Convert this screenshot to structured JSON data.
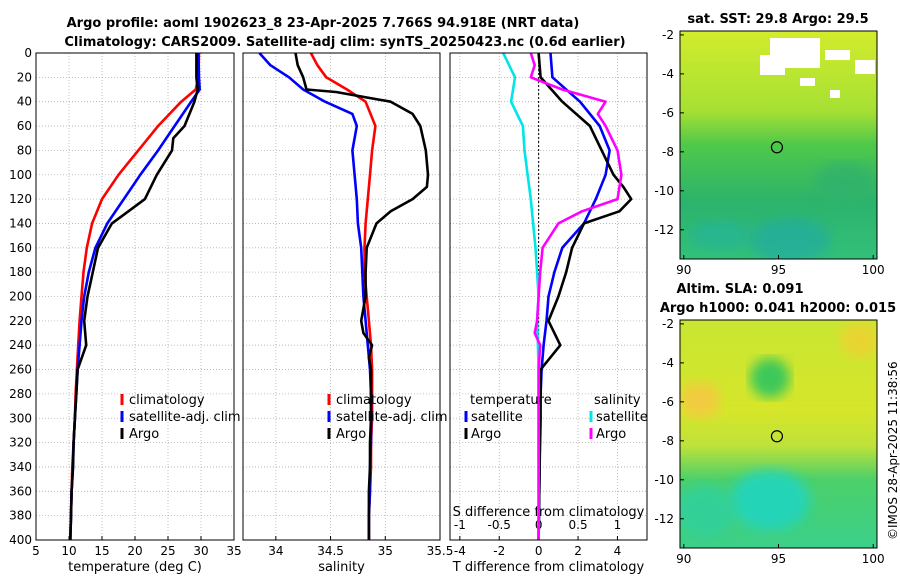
{
  "title": {
    "line1": "Argo profile: aoml 1902623_8 23-Apr-2025 7.766S 94.918E (NRT data)",
    "line2": "Climatology: CARS2009. Satellite-adj clim: synTS_20250423.nc (0.6d earlier)"
  },
  "colors": {
    "climatology": "#ff0000",
    "satellite": "#0000ff",
    "argo": "#000000",
    "s_sat": "#00e5e5",
    "s_argo": "#ff00ff"
  },
  "chart_data": [
    {
      "type": "line",
      "title": "",
      "xlabel": "temperature (deg C)",
      "xlim": [
        5,
        35
      ],
      "ylim": [
        400,
        0
      ],
      "xticks": [
        "5",
        "10",
        "15",
        "20",
        "25",
        "30",
        "35"
      ],
      "yticks": [
        "0",
        "20",
        "40",
        "60",
        "80",
        "100",
        "120",
        "140",
        "160",
        "180",
        "200",
        "220",
        "240",
        "260",
        "280",
        "300",
        "320",
        "340",
        "360",
        "380",
        "400"
      ],
      "legend": [
        "climatology",
        "satellite-adj. clim",
        "Argo"
      ],
      "series": [
        {
          "name": "climatology",
          "color": "#ff0000",
          "depth": [
            0,
            20,
            30,
            40,
            60,
            80,
            100,
            120,
            140,
            160,
            180,
            200,
            220,
            240,
            260,
            280,
            300,
            320,
            340,
            360,
            380,
            400
          ],
          "values": [
            29.7,
            29.6,
            29.2,
            27,
            23.5,
            20.5,
            17.5,
            15,
            13.5,
            12.7,
            12.2,
            11.9,
            11.6,
            11.4,
            11.2,
            11,
            10.9,
            10.7,
            10.5,
            10.4,
            10.3,
            10.2
          ]
        },
        {
          "name": "satellite-adj. clim",
          "color": "#0000ff",
          "depth": [
            0,
            20,
            30,
            40,
            60,
            80,
            100,
            120,
            140,
            160,
            180,
            200,
            220,
            240,
            260,
            280,
            300,
            320,
            340,
            360,
            380,
            400
          ],
          "values": [
            29.6,
            29.7,
            29.8,
            28.5,
            26,
            23.5,
            20.8,
            18.3,
            15.8,
            14,
            13,
            12.3,
            11.9,
            11.6,
            11.3,
            11.1,
            10.9,
            10.7,
            10.6,
            10.4,
            10.3,
            10.2
          ]
        },
        {
          "name": "Argo",
          "color": "#000000",
          "depth": [
            0,
            20,
            30,
            40,
            60,
            70,
            80,
            100,
            120,
            130,
            140,
            160,
            180,
            200,
            220,
            240,
            260,
            280,
            300,
            320,
            340,
            360,
            380,
            400
          ],
          "values": [
            29.3,
            29.3,
            29.5,
            29,
            27.5,
            25.8,
            25.6,
            23.3,
            21.5,
            19,
            16.5,
            14.4,
            13.6,
            12.8,
            12.3,
            12.6,
            11.3,
            11.1,
            10.9,
            10.7,
            10.6,
            10.4,
            10.3,
            10.2
          ]
        }
      ]
    },
    {
      "type": "line",
      "title": "",
      "xlabel": "salinity",
      "xlim": [
        33.7,
        35.5
      ],
      "ylim": [
        400,
        0
      ],
      "xticks": [
        "34",
        "34.5",
        "35",
        "35.5"
      ],
      "legend": [
        "climatology",
        "satellite-adj. clim",
        "Argo"
      ],
      "series": [
        {
          "name": "climatology",
          "color": "#ff0000",
          "depth": [
            0,
            10,
            20,
            30,
            40,
            60,
            80,
            100,
            120,
            140,
            160,
            180,
            200,
            220,
            240,
            260,
            280,
            300,
            320,
            340,
            360,
            380,
            400
          ],
          "values": [
            34.32,
            34.38,
            34.46,
            34.65,
            34.82,
            34.91,
            34.88,
            34.86,
            34.84,
            34.82,
            34.81,
            34.81,
            34.83,
            34.85,
            34.87,
            34.88,
            34.88,
            34.88,
            34.87,
            34.87,
            34.86,
            34.85,
            34.85
          ]
        },
        {
          "name": "satellite-adj. clim",
          "color": "#0000ff",
          "depth": [
            0,
            10,
            20,
            30,
            40,
            50,
            60,
            80,
            100,
            120,
            140,
            160,
            180,
            200,
            220,
            240,
            260,
            280,
            300,
            320,
            340,
            360,
            380,
            400
          ],
          "values": [
            33.85,
            33.95,
            34.12,
            34.25,
            34.45,
            34.7,
            34.74,
            34.7,
            34.72,
            34.74,
            34.75,
            34.78,
            34.79,
            34.8,
            34.82,
            34.84,
            34.86,
            34.87,
            34.87,
            34.87,
            34.86,
            34.86,
            34.85,
            34.85
          ]
        },
        {
          "name": "Argo",
          "color": "#000000",
          "depth": [
            0,
            10,
            20,
            30,
            32,
            40,
            50,
            60,
            80,
            100,
            110,
            120,
            130,
            140,
            160,
            180,
            200,
            220,
            230,
            240,
            250,
            260,
            280,
            300,
            320,
            340,
            360,
            380,
            400
          ],
          "values": [
            34.18,
            34.2,
            34.25,
            34.28,
            34.55,
            35.05,
            35.25,
            35.32,
            35.37,
            35.39,
            35.38,
            35.25,
            35.05,
            34.92,
            34.83,
            34.82,
            34.82,
            34.78,
            34.8,
            34.88,
            34.85,
            34.87,
            34.87,
            34.87,
            34.86,
            34.86,
            34.85,
            34.85,
            34.85
          ]
        }
      ]
    },
    {
      "type": "line",
      "title": "",
      "xlabel": "T difference from climatology",
      "xlabel_top": "S difference from climatology",
      "xlim": [
        -4.5,
        5.5
      ],
      "ylim": [
        400,
        0
      ],
      "xticks": [
        "-4",
        "-2",
        "0",
        "2",
        "4"
      ],
      "xticks_top": [
        "-1",
        "-0.5",
        "0",
        "0.5",
        "1"
      ],
      "legend": [
        "temperature",
        "satellite",
        "Argo",
        "salinity",
        "satellite",
        "Argo"
      ],
      "series": [
        {
          "name": "T satellite",
          "color": "#0000ff",
          "depth": [
            0,
            20,
            40,
            60,
            80,
            100,
            120,
            140,
            160,
            180,
            200,
            220,
            240,
            260,
            300,
            340,
            400
          ],
          "values": [
            0.6,
            0.7,
            2.1,
            3.1,
            3.6,
            3.4,
            2.9,
            2.3,
            1.2,
            0.8,
            0.5,
            0.4,
            0.25,
            0.15,
            0.05,
            0.05,
            0
          ]
        },
        {
          "name": "T Argo",
          "color": "#000000",
          "depth": [
            0,
            20,
            40,
            60,
            80,
            100,
            110,
            120,
            130,
            140,
            160,
            180,
            200,
            220,
            240,
            260,
            280,
            300,
            340,
            400
          ],
          "values": [
            0,
            0.1,
            1.2,
            2.6,
            3.2,
            3.8,
            4.3,
            4.7,
            4.1,
            2.3,
            1.7,
            1.4,
            1.0,
            0.5,
            1.1,
            0.1,
            0.1,
            0.1,
            0.05,
            0
          ]
        },
        {
          "name": "S satellite",
          "color": "#00e5e5",
          "depth": [
            0,
            20,
            40,
            60,
            80,
            100,
            120,
            140,
            160,
            180,
            200,
            220,
            240,
            260,
            280,
            300,
            340,
            400
          ],
          "values": [
            -0.45,
            -0.3,
            -0.35,
            -0.2,
            -0.18,
            -0.14,
            -0.1,
            -0.07,
            -0.04,
            -0.02,
            0,
            -0.02,
            -0.01,
            0,
            0,
            0,
            0,
            0
          ]
        },
        {
          "name": "S Argo",
          "color": "#ff00ff",
          "depth": [
            0,
            10,
            20,
            30,
            40,
            50,
            60,
            80,
            100,
            120,
            130,
            140,
            160,
            180,
            200,
            220,
            230,
            240,
            260,
            300,
            340,
            400
          ],
          "values": [
            -0.1,
            -0.05,
            -0.1,
            0.3,
            0.85,
            0.75,
            0.85,
            1.0,
            1.05,
            1.0,
            0.55,
            0.25,
            0.05,
            0.02,
            0,
            -0.02,
            -0.05,
            0.02,
            0,
            0,
            0,
            0
          ]
        }
      ]
    },
    {
      "type": "heatmap",
      "title": "sat. SST: 29.8 Argo: 29.5",
      "xlim": [
        89.8,
        100.2
      ],
      "ylim": [
        -13.5,
        -1.8
      ],
      "xticks": [
        "90",
        "95",
        "100"
      ],
      "yticks": [
        "-2",
        "-4",
        "-6",
        "-8",
        "-10",
        "-12"
      ],
      "marker": {
        "lon": 94.918,
        "lat": -7.766
      }
    },
    {
      "type": "heatmap",
      "title": "Altim. SLA: 0.091",
      "subtitle": "Argo h1000: 0.041 h2000: 0.015",
      "xlim": [
        89.8,
        100.2
      ],
      "ylim": [
        -13.5,
        -1.8
      ],
      "xticks": [
        "90",
        "95",
        "100"
      ],
      "yticks": [
        "-2",
        "-4",
        "-6",
        "-8",
        "-10",
        "-12"
      ],
      "marker": {
        "lon": 94.918,
        "lat": -7.766
      }
    }
  ],
  "credit": "©IMOS 28-Apr-2025 11:38:56"
}
